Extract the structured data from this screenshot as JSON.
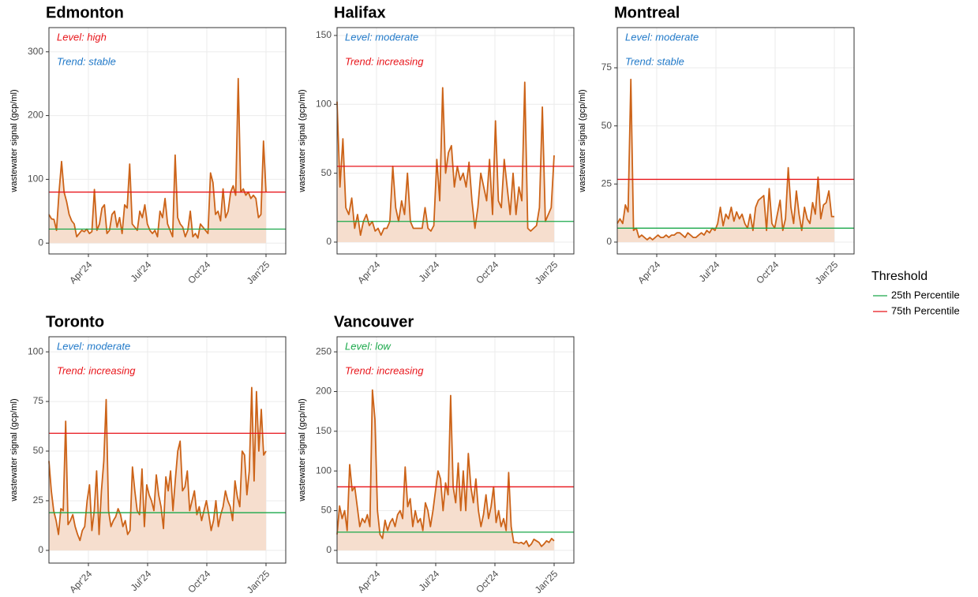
{
  "chart_data": [
    {
      "type": "line",
      "title": "Edmonton",
      "level": {
        "text": "Level: high",
        "color": "#e8141a"
      },
      "trend": {
        "text": "Trend: stable",
        "color": "#1f78c8"
      },
      "ylabel": "wastewater signal (gcp/ml)",
      "xlim": [
        "2024-02",
        "2025-02"
      ],
      "xticks": [
        {
          "value": "2024-04",
          "label": "Apr'24"
        },
        {
          "value": "2024-07",
          "label": "Jul'24"
        },
        {
          "value": "2024-10",
          "label": "Oct'24"
        },
        {
          "value": "2025-01",
          "label": "Jan'25"
        }
      ],
      "ylim": [
        -17,
        338
      ],
      "yticks": [
        0,
        100,
        200,
        300
      ],
      "thresholds": [
        22,
        80
      ],
      "series": [
        {
          "color": "#cc6318",
          "fill": "#f6dece",
          "x_range": [
            "2024-02",
            "2025-01"
          ],
          "values": [
            45,
            38,
            37,
            20,
            80,
            128,
            80,
            65,
            45,
            35,
            30,
            10,
            15,
            20,
            18,
            22,
            15,
            18,
            84,
            20,
            30,
            55,
            60,
            15,
            20,
            45,
            50,
            25,
            40,
            15,
            60,
            55,
            124,
            30,
            25,
            20,
            50,
            40,
            60,
            30,
            20,
            15,
            20,
            10,
            50,
            40,
            70,
            30,
            20,
            10,
            138,
            40,
            30,
            25,
            10,
            20,
            50,
            10,
            15,
            8,
            30,
            25,
            20,
            15,
            110,
            95,
            45,
            50,
            35,
            85,
            40,
            50,
            80,
            90,
            75,
            258,
            80,
            85,
            75,
            80,
            70,
            75,
            70,
            40,
            45,
            160,
            80
          ]
        }
      ]
    },
    {
      "type": "line",
      "title": "Halifax",
      "level": {
        "text": "Level: moderate",
        "color": "#1f78c8"
      },
      "trend": {
        "text": "Trend: increasing",
        "color": "#e8141a"
      },
      "ylabel": "wastewater signal (gcp/ml)",
      "xlim": [
        "2024-02",
        "2025-02"
      ],
      "xticks": [
        {
          "value": "2024-04",
          "label": "Apr'24"
        },
        {
          "value": "2024-07",
          "label": "Jul'24"
        },
        {
          "value": "2024-10",
          "label": "Oct'24"
        },
        {
          "value": "2025-01",
          "label": "Jan'25"
        }
      ],
      "ylim": [
        -8.6,
        155.7
      ],
      "yticks": [
        0,
        50,
        100,
        150
      ],
      "thresholds": [
        15,
        55
      ],
      "series": [
        {
          "color": "#cc6318",
          "fill": "#f6dece",
          "x_range": [
            "2024-02",
            "2025-01"
          ],
          "values": [
            102,
            40,
            75,
            25,
            20,
            32,
            10,
            20,
            5,
            15,
            20,
            12,
            15,
            8,
            10,
            5,
            10,
            10,
            15,
            55,
            25,
            15,
            30,
            20,
            50,
            15,
            10,
            10,
            10,
            10,
            25,
            10,
            8,
            12,
            60,
            30,
            112,
            50,
            65,
            70,
            40,
            55,
            45,
            50,
            40,
            58,
            30,
            10,
            25,
            50,
            40,
            30,
            60,
            20,
            88,
            30,
            25,
            60,
            40,
            20,
            50,
            20,
            40,
            30,
            116,
            10,
            8,
            10,
            12,
            25,
            98,
            15,
            20,
            25,
            63
          ]
        }
      ]
    },
    {
      "type": "line",
      "title": "Montreal",
      "level": {
        "text": "Level: moderate",
        "color": "#1f78c8"
      },
      "trend": {
        "text": "Trend: stable",
        "color": "#1f78c8"
      },
      "ylabel": "wastewater signal (gcp/ml)",
      "xlim": [
        "2024-02",
        "2025-02"
      ],
      "xticks": [
        {
          "value": "2024-04",
          "label": "Apr'24"
        },
        {
          "value": "2024-07",
          "label": "Jul'24"
        },
        {
          "value": "2024-10",
          "label": "Oct'24"
        },
        {
          "value": "2025-01",
          "label": "Jan'25"
        }
      ],
      "ylim": [
        -5.1,
        92.3
      ],
      "yticks": [
        0,
        25,
        50,
        75
      ],
      "thresholds": [
        6,
        27
      ],
      "series": [
        {
          "color": "#cc6318",
          "fill": "#f6dece",
          "x_range": [
            "2024-02",
            "2025-01"
          ],
          "values": [
            8,
            10,
            8,
            16,
            13,
            70,
            5,
            6,
            2,
            3,
            2,
            1,
            2,
            1,
            2,
            3,
            2,
            2,
            3,
            2,
            3,
            3,
            4,
            4,
            3,
            2,
            4,
            3,
            2,
            2,
            3,
            4,
            3,
            5,
            4,
            6,
            5,
            8,
            15,
            7,
            12,
            10,
            15,
            9,
            13,
            10,
            12,
            8,
            6,
            12,
            5,
            15,
            18,
            19,
            20,
            5,
            23,
            8,
            6,
            12,
            18,
            5,
            10,
            32,
            15,
            8,
            22,
            12,
            5,
            15,
            10,
            8,
            17,
            12,
            28,
            10,
            16,
            17,
            22,
            11,
            11
          ]
        }
      ]
    },
    {
      "type": "line",
      "title": "Toronto",
      "level": {
        "text": "Level: moderate",
        "color": "#1f78c8"
      },
      "trend": {
        "text": "Trend: increasing",
        "color": "#e8141a"
      },
      "ylabel": "wastewater signal (gcp/ml)",
      "xlim": [
        "2024-02",
        "2025-02"
      ],
      "xticks": [
        {
          "value": "2024-04",
          "label": "Apr'24"
        },
        {
          "value": "2024-07",
          "label": "Jul'24"
        },
        {
          "value": "2024-10",
          "label": "Oct'24"
        },
        {
          "value": "2025-01",
          "label": "Jan'25"
        }
      ],
      "ylim": [
        -6.4,
        107.6
      ],
      "yticks": [
        0,
        25,
        50,
        75,
        100
      ],
      "thresholds": [
        19,
        59
      ],
      "series": [
        {
          "color": "#cc6318",
          "fill": "#f6dece",
          "x_range": [
            "2024-02",
            "2025-01"
          ],
          "values": [
            45,
            30,
            20,
            15,
            8,
            21,
            20,
            65,
            13,
            15,
            18,
            12,
            8,
            5,
            10,
            12,
            25,
            33,
            10,
            20,
            40,
            8,
            30,
            45,
            76,
            20,
            12,
            15,
            17,
            21,
            18,
            12,
            15,
            8,
            10,
            42,
            30,
            20,
            18,
            41,
            12,
            33,
            28,
            25,
            20,
            38,
            28,
            22,
            11,
            37,
            30,
            40,
            20,
            36,
            50,
            55,
            30,
            32,
            40,
            20,
            25,
            30,
            18,
            22,
            15,
            20,
            25,
            18,
            10,
            15,
            25,
            12,
            18,
            22,
            30,
            25,
            22,
            15,
            35,
            27,
            22,
            50,
            48,
            28,
            40,
            82,
            35,
            80,
            50,
            71,
            48,
            50
          ]
        }
      ]
    },
    {
      "type": "line",
      "title": "Vancouver",
      "level": {
        "text": "Level: low",
        "color": "#1aa84a"
      },
      "trend": {
        "text": "Trend: increasing",
        "color": "#e8141a"
      },
      "ylabel": "wastewater signal (gcp/ml)",
      "xlim": [
        "2024-02",
        "2025-02"
      ],
      "xticks": [
        {
          "value": "2024-04",
          "label": "Apr'24"
        },
        {
          "value": "2024-07",
          "label": "Jul'24"
        },
        {
          "value": "2024-10",
          "label": "Oct'24"
        },
        {
          "value": "2025-01",
          "label": "Jan'25"
        }
      ],
      "ylim": [
        -16,
        269
      ],
      "yticks": [
        0,
        50,
        100,
        150,
        200,
        250
      ],
      "thresholds": [
        23,
        80
      ],
      "series": [
        {
          "color": "#cc6318",
          "fill": "#f6dece",
          "x_range": [
            "2024-02",
            "2025-01"
          ],
          "values": [
            20,
            56,
            40,
            50,
            25,
            108,
            75,
            80,
            55,
            30,
            40,
            35,
            45,
            30,
            202,
            165,
            50,
            20,
            15,
            38,
            25,
            35,
            40,
            30,
            45,
            50,
            40,
            105,
            55,
            65,
            30,
            50,
            35,
            40,
            25,
            60,
            50,
            30,
            50,
            75,
            100,
            90,
            50,
            85,
            70,
            195,
            80,
            60,
            110,
            50,
            100,
            50,
            122,
            80,
            60,
            90,
            50,
            30,
            45,
            70,
            40,
            55,
            80,
            35,
            50,
            30,
            40,
            25,
            98,
            30,
            10,
            10,
            9,
            10,
            8,
            12,
            5,
            8,
            14,
            12,
            10,
            5,
            8,
            12,
            10,
            15,
            12
          ]
        }
      ]
    }
  ],
  "legend": {
    "title": "Threshold",
    "items": [
      {
        "name": "25th Percentile",
        "color": "#1aa84a"
      },
      {
        "name": "75th Percentile",
        "color": "#e8141a"
      }
    ]
  }
}
